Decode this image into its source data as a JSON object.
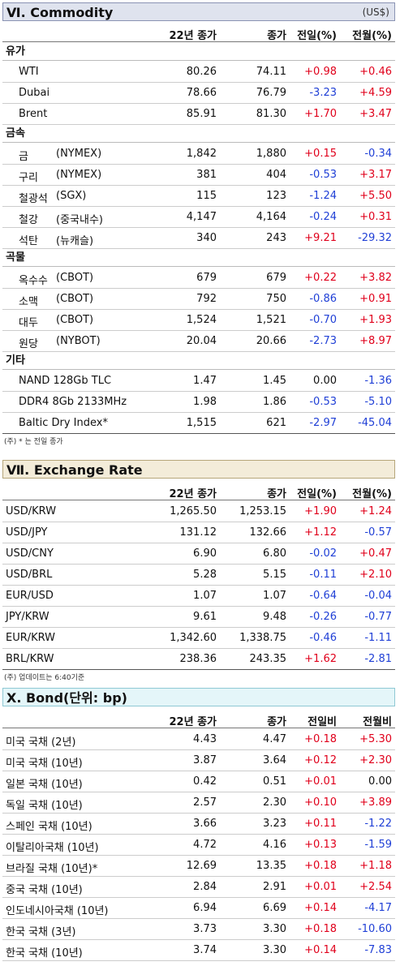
{
  "commodity": {
    "title": "Ⅵ. Commodity",
    "unit": "(US$)",
    "headers": [
      "22년 종가",
      "종가",
      "전일(%)",
      "전월(%)"
    ],
    "groups": [
      {
        "name": "유가",
        "rows": [
          {
            "label": "WTI",
            "exch": "",
            "v1": "80.26",
            "v2": "74.11",
            "v3": "+0.98",
            "v4": "+0.46",
            "c3": "r",
            "c4": "r"
          },
          {
            "label": "Dubai",
            "exch": "",
            "v1": "78.66",
            "v2": "76.79",
            "v3": "-3.23",
            "v4": "+4.59",
            "c3": "b",
            "c4": "r"
          },
          {
            "label": "Brent",
            "exch": "",
            "v1": "85.91",
            "v2": "81.30",
            "v3": "+1.70",
            "v4": "+3.47",
            "c3": "r",
            "c4": "r"
          }
        ]
      },
      {
        "name": "금속",
        "rows": [
          {
            "label": "금",
            "exch": "(NYMEX)",
            "v1": "1,842",
            "v2": "1,880",
            "v3": "+0.15",
            "v4": "-0.34",
            "c3": "r",
            "c4": "b"
          },
          {
            "label": "구리",
            "exch": "(NYMEX)",
            "v1": "381",
            "v2": "404",
            "v3": "-0.53",
            "v4": "+3.17",
            "c3": "b",
            "c4": "r"
          },
          {
            "label": "철광석",
            "exch": "(SGX)",
            "v1": "115",
            "v2": "123",
            "v3": "-1.24",
            "v4": "+5.50",
            "c3": "b",
            "c4": "r"
          },
          {
            "label": "철강",
            "exch": "(중국내수)",
            "v1": "4,147",
            "v2": "4,164",
            "v3": "-0.24",
            "v4": "+0.31",
            "c3": "b",
            "c4": "r"
          },
          {
            "label": "석탄",
            "exch": "(뉴캐슬)",
            "v1": "340",
            "v2": "243",
            "v3": "+9.21",
            "v4": "-29.32",
            "c3": "r",
            "c4": "b"
          }
        ]
      },
      {
        "name": "곡물",
        "rows": [
          {
            "label": "옥수수",
            "exch": "(CBOT)",
            "v1": "679",
            "v2": "679",
            "v3": "+0.22",
            "v4": "+3.82",
            "c3": "r",
            "c4": "r"
          },
          {
            "label": "소맥",
            "exch": "(CBOT)",
            "v1": "792",
            "v2": "750",
            "v3": "-0.86",
            "v4": "+0.91",
            "c3": "b",
            "c4": "r"
          },
          {
            "label": "대두",
            "exch": "(CBOT)",
            "v1": "1,524",
            "v2": "1,521",
            "v3": "-0.70",
            "v4": "+1.93",
            "c3": "b",
            "c4": "r"
          },
          {
            "label": "원당",
            "exch": "(NYBOT)",
            "v1": "20.04",
            "v2": "20.66",
            "v3": "-2.73",
            "v4": "+8.97",
            "c3": "b",
            "c4": "r"
          }
        ]
      },
      {
        "name": "기타",
        "rows": [
          {
            "label": "NAND 128Gb TLC",
            "exch": "",
            "v1": "1.47",
            "v2": "1.45",
            "v3": "0.00",
            "v4": "-1.36",
            "c3": "",
            "c4": "b"
          },
          {
            "label": "DDR4 8Gb 2133MHz",
            "exch": "",
            "v1": "1.98",
            "v2": "1.86",
            "v3": "-0.53",
            "v4": "-5.10",
            "c3": "b",
            "c4": "b"
          },
          {
            "label": "Baltic Dry Index*",
            "exch": "",
            "v1": "1,515",
            "v2": "621",
            "v3": "-2.97",
            "v4": "-45.04",
            "c3": "b",
            "c4": "b"
          }
        ]
      }
    ],
    "note": "(주) * 는 전일 종가"
  },
  "exchange": {
    "title": "Ⅶ. Exchange Rate",
    "headers": [
      "22년 종가",
      "종가",
      "전일(%)",
      "전월(%)"
    ],
    "rows": [
      {
        "label": "USD/KRW",
        "v1": "1,265.50",
        "v2": "1,253.15",
        "v3": "+1.90",
        "v4": "+1.24",
        "c3": "r",
        "c4": "r"
      },
      {
        "label": "USD/JPY",
        "v1": "131.12",
        "v2": "132.66",
        "v3": "+1.12",
        "v4": "-0.57",
        "c3": "r",
        "c4": "b"
      },
      {
        "label": "USD/CNY",
        "v1": "6.90",
        "v2": "6.80",
        "v3": "-0.02",
        "v4": "+0.47",
        "c3": "b",
        "c4": "r"
      },
      {
        "label": "USD/BRL",
        "v1": "5.28",
        "v2": "5.15",
        "v3": "-0.11",
        "v4": "+2.10",
        "c3": "b",
        "c4": "r"
      },
      {
        "label": "EUR/USD",
        "v1": "1.07",
        "v2": "1.07",
        "v3": "-0.64",
        "v4": "-0.04",
        "c3": "b",
        "c4": "b"
      },
      {
        "label": "JPY/KRW",
        "v1": "9.61",
        "v2": "9.48",
        "v3": "-0.26",
        "v4": "-0.77",
        "c3": "b",
        "c4": "b"
      },
      {
        "label": "EUR/KRW",
        "v1": "1,342.60",
        "v2": "1,338.75",
        "v3": "-0.46",
        "v4": "-1.11",
        "c3": "b",
        "c4": "b"
      },
      {
        "label": "BRL/KRW",
        "v1": "238.36",
        "v2": "243.35",
        "v3": "+1.62",
        "v4": "-2.81",
        "c3": "r",
        "c4": "b"
      }
    ],
    "note": "(주) 업데이트는 6:40기준"
  },
  "bond": {
    "title": "X. Bond(단위: bp)",
    "headers": [
      "22년 종가",
      "종가",
      "전일비",
      "전월비"
    ],
    "rows": [
      {
        "label": "미국 국채 (2년)",
        "v1": "4.43",
        "v2": "4.47",
        "v3": "+0.18",
        "v4": "+5.30",
        "c3": "r",
        "c4": "r"
      },
      {
        "label": "미국 국채 (10년)",
        "v1": "3.87",
        "v2": "3.64",
        "v3": "+0.12",
        "v4": "+2.30",
        "c3": "r",
        "c4": "r"
      },
      {
        "label": "일본 국채 (10년)",
        "v1": "0.42",
        "v2": "0.51",
        "v3": "+0.01",
        "v4": "0.00",
        "c3": "r",
        "c4": ""
      },
      {
        "label": "독일 국채 (10년)",
        "v1": "2.57",
        "v2": "2.30",
        "v3": "+0.10",
        "v4": "+3.89",
        "c3": "r",
        "c4": "r"
      },
      {
        "label": "스페인 국채 (10년)",
        "v1": "3.66",
        "v2": "3.23",
        "v3": "+0.11",
        "v4": "-1.22",
        "c3": "r",
        "c4": "b"
      },
      {
        "label": "이탈리아국채 (10년)",
        "v1": "4.72",
        "v2": "4.16",
        "v3": "+0.13",
        "v4": "-1.59",
        "c3": "r",
        "c4": "b"
      },
      {
        "label": "브라질 국채 (10년)*",
        "v1": "12.69",
        "v2": "13.35",
        "v3": "+0.18",
        "v4": "+1.18",
        "c3": "r",
        "c4": "r"
      },
      {
        "label": "중국 국채 (10년)",
        "v1": "2.84",
        "v2": "2.91",
        "v3": "+0.01",
        "v4": "+2.54",
        "c3": "r",
        "c4": "r"
      },
      {
        "label": "인도네시아국채 (10년)",
        "v1": "6.94",
        "v2": "6.69",
        "v3": "+0.14",
        "v4": "-4.17",
        "c3": "r",
        "c4": "b"
      },
      {
        "label": "한국 국채 (3년)",
        "v1": "3.73",
        "v2": "3.30",
        "v3": "+0.18",
        "v4": "-10.60",
        "c3": "r",
        "c4": "b"
      },
      {
        "label": "한국 국채 (10년)",
        "v1": "3.74",
        "v2": "3.30",
        "v3": "+0.14",
        "v4": "-7.83",
        "c3": "r",
        "c4": "b"
      }
    ]
  }
}
